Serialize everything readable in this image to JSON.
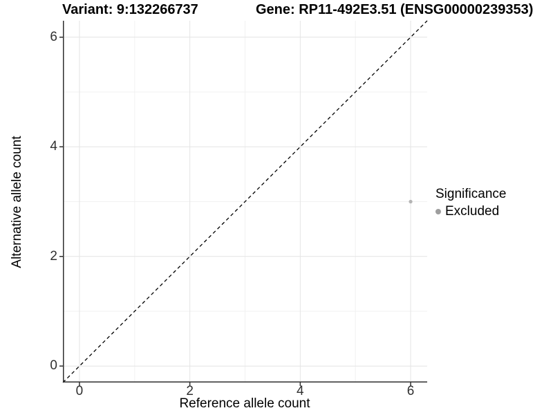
{
  "figure": {
    "title_left": "Variant: 9:132266737",
    "title_right": "Gene: RP11-492E3.51 (ENSG00000239353)"
  },
  "chart_data": {
    "type": "scatter",
    "title": "Variant: 9:132266737   Gene: RP11-492E3.51 (ENSG00000239353)",
    "xlabel": "Reference allele count",
    "ylabel": "Alternative allele count",
    "xlim": [
      -0.3,
      6.3
    ],
    "ylim": [
      -0.3,
      6.3
    ],
    "x_ticks": [
      0,
      2,
      4,
      6
    ],
    "y_ticks": [
      0,
      2,
      4,
      6
    ],
    "x_minor_ticks": [
      1,
      3,
      5
    ],
    "y_minor_ticks": [
      1,
      3,
      5
    ],
    "grid": "on",
    "series": [
      {
        "name": "Excluded",
        "points": [
          {
            "x": 6,
            "y": 3
          }
        ],
        "color": "#b4b4b4",
        "point_radius": 2.6
      }
    ],
    "reference_line": {
      "kind": "identity",
      "slope": 1,
      "intercept": 0,
      "style": "dashed",
      "color": "#000000"
    },
    "legend": {
      "title": "Significance",
      "position": "right",
      "items": [
        {
          "label": "Excluded",
          "color": "#9e9e9e"
        }
      ]
    },
    "colors": {
      "grid_major": "#e4e4e4",
      "grid_minor": "#f1f1f1",
      "axis_line": "#2e2e2e",
      "tick_label": "#303030"
    }
  }
}
